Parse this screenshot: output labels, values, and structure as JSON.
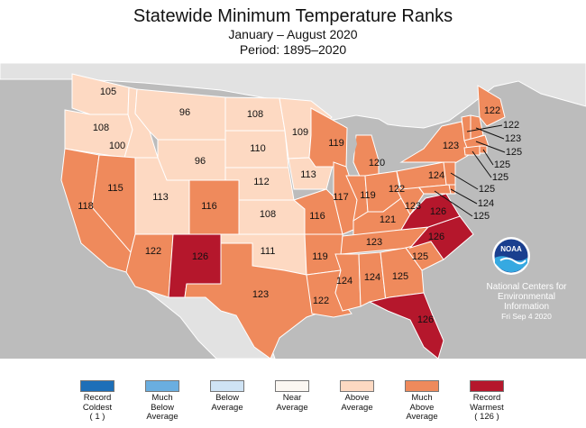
{
  "title": "Statewide Minimum Temperature Ranks",
  "subtitle": "January – August 2020",
  "period": "Period: 1895–2020",
  "colors": {
    "ocean": "#bcbcbc",
    "land_other": "#e2e2e2",
    "record_coldest": "#1e6fb8",
    "much_below": "#6aaee0",
    "below": "#cfe3f4",
    "near": "#fbf7f2",
    "above": "#fdd9c2",
    "much_above": "#ef8a5c",
    "record_warmest": "#b5172c"
  },
  "states": [
    {
      "abbr": "WA",
      "rank": "105",
      "category": "above"
    },
    {
      "abbr": "OR",
      "rank": "108",
      "category": "above"
    },
    {
      "abbr": "ID",
      "rank": "100",
      "category": "above"
    },
    {
      "abbr": "MT",
      "rank": "96",
      "category": "above"
    },
    {
      "abbr": "WY",
      "rank": "96",
      "category": "above"
    },
    {
      "abbr": "ND",
      "rank": "108",
      "category": "above"
    },
    {
      "abbr": "SD",
      "rank": "110",
      "category": "above"
    },
    {
      "abbr": "NE",
      "rank": "112",
      "category": "above"
    },
    {
      "abbr": "MN",
      "rank": "109",
      "category": "above"
    },
    {
      "abbr": "IA",
      "rank": "113",
      "category": "above"
    },
    {
      "abbr": "KS",
      "rank": "108",
      "category": "above"
    },
    {
      "abbr": "OK",
      "rank": "111",
      "category": "above"
    },
    {
      "abbr": "UT",
      "rank": "113",
      "category": "above"
    },
    {
      "abbr": "CA",
      "rank": "118",
      "category": "much_above"
    },
    {
      "abbr": "NV",
      "rank": "115",
      "category": "much_above"
    },
    {
      "abbr": "AZ",
      "rank": "122",
      "category": "much_above"
    },
    {
      "abbr": "CO",
      "rank": "116",
      "category": "much_above"
    },
    {
      "abbr": "NM",
      "rank": "126",
      "category": "record_warmest"
    },
    {
      "abbr": "TX",
      "rank": "123",
      "category": "much_above"
    },
    {
      "abbr": "MO",
      "rank": "116",
      "category": "much_above"
    },
    {
      "abbr": "AR",
      "rank": "119",
      "category": "much_above"
    },
    {
      "abbr": "LA",
      "rank": "122",
      "category": "much_above"
    },
    {
      "abbr": "WI",
      "rank": "119",
      "category": "much_above"
    },
    {
      "abbr": "IL",
      "rank": "117",
      "category": "much_above"
    },
    {
      "abbr": "MI",
      "rank": "120",
      "category": "much_above"
    },
    {
      "abbr": "IN",
      "rank": "119",
      "category": "much_above"
    },
    {
      "abbr": "OH",
      "rank": "122",
      "category": "much_above"
    },
    {
      "abbr": "KY",
      "rank": "121",
      "category": "much_above"
    },
    {
      "abbr": "TN",
      "rank": "123",
      "category": "much_above"
    },
    {
      "abbr": "MS",
      "rank": "124",
      "category": "much_above"
    },
    {
      "abbr": "AL",
      "rank": "124",
      "category": "much_above"
    },
    {
      "abbr": "GA",
      "rank": "125",
      "category": "much_above"
    },
    {
      "abbr": "FL",
      "rank": "126",
      "category": "record_warmest"
    },
    {
      "abbr": "SC",
      "rank": "125",
      "category": "much_above"
    },
    {
      "abbr": "NC",
      "rank": "126",
      "category": "record_warmest"
    },
    {
      "abbr": "VA",
      "rank": "126",
      "category": "record_warmest"
    },
    {
      "abbr": "WV",
      "rank": "123",
      "category": "much_above"
    },
    {
      "abbr": "PA",
      "rank": "124",
      "category": "much_above"
    },
    {
      "abbr": "NY",
      "rank": "123",
      "category": "much_above"
    },
    {
      "abbr": "ME",
      "rank": "122",
      "category": "much_above"
    },
    {
      "abbr": "VT",
      "rank": "122",
      "category": "much_above"
    },
    {
      "abbr": "NH",
      "rank": "123",
      "category": "much_above"
    },
    {
      "abbr": "MA",
      "rank": "125",
      "category": "much_above"
    },
    {
      "abbr": "RI",
      "rank": "125",
      "category": "much_above"
    },
    {
      "abbr": "CT",
      "rank": "125",
      "category": "much_above"
    },
    {
      "abbr": "NJ",
      "rank": "125",
      "category": "much_above"
    },
    {
      "abbr": "DE",
      "rank": "124",
      "category": "much_above"
    },
    {
      "abbr": "MD",
      "rank": "125",
      "category": "much_above"
    }
  ],
  "ncei": {
    "line1": "National Centers for",
    "line2": "Environmental",
    "line3": "Information",
    "date": "Fri Sep  4 2020",
    "logo_text": "NOAA"
  },
  "legend": [
    {
      "key": "record_coldest",
      "lines": [
        "Record",
        "Coldest",
        "( 1 )"
      ]
    },
    {
      "key": "much_below",
      "lines": [
        "Much",
        "Below",
        "Average"
      ]
    },
    {
      "key": "below",
      "lines": [
        "Below",
        "Average"
      ]
    },
    {
      "key": "near",
      "lines": [
        "Near",
        "Average"
      ]
    },
    {
      "key": "above",
      "lines": [
        "Above",
        "Average"
      ]
    },
    {
      "key": "much_above",
      "lines": [
        "Much",
        "Above",
        "Average"
      ]
    },
    {
      "key": "record_warmest",
      "lines": [
        "Record",
        "Warmest",
        "( 126 )"
      ]
    }
  ]
}
